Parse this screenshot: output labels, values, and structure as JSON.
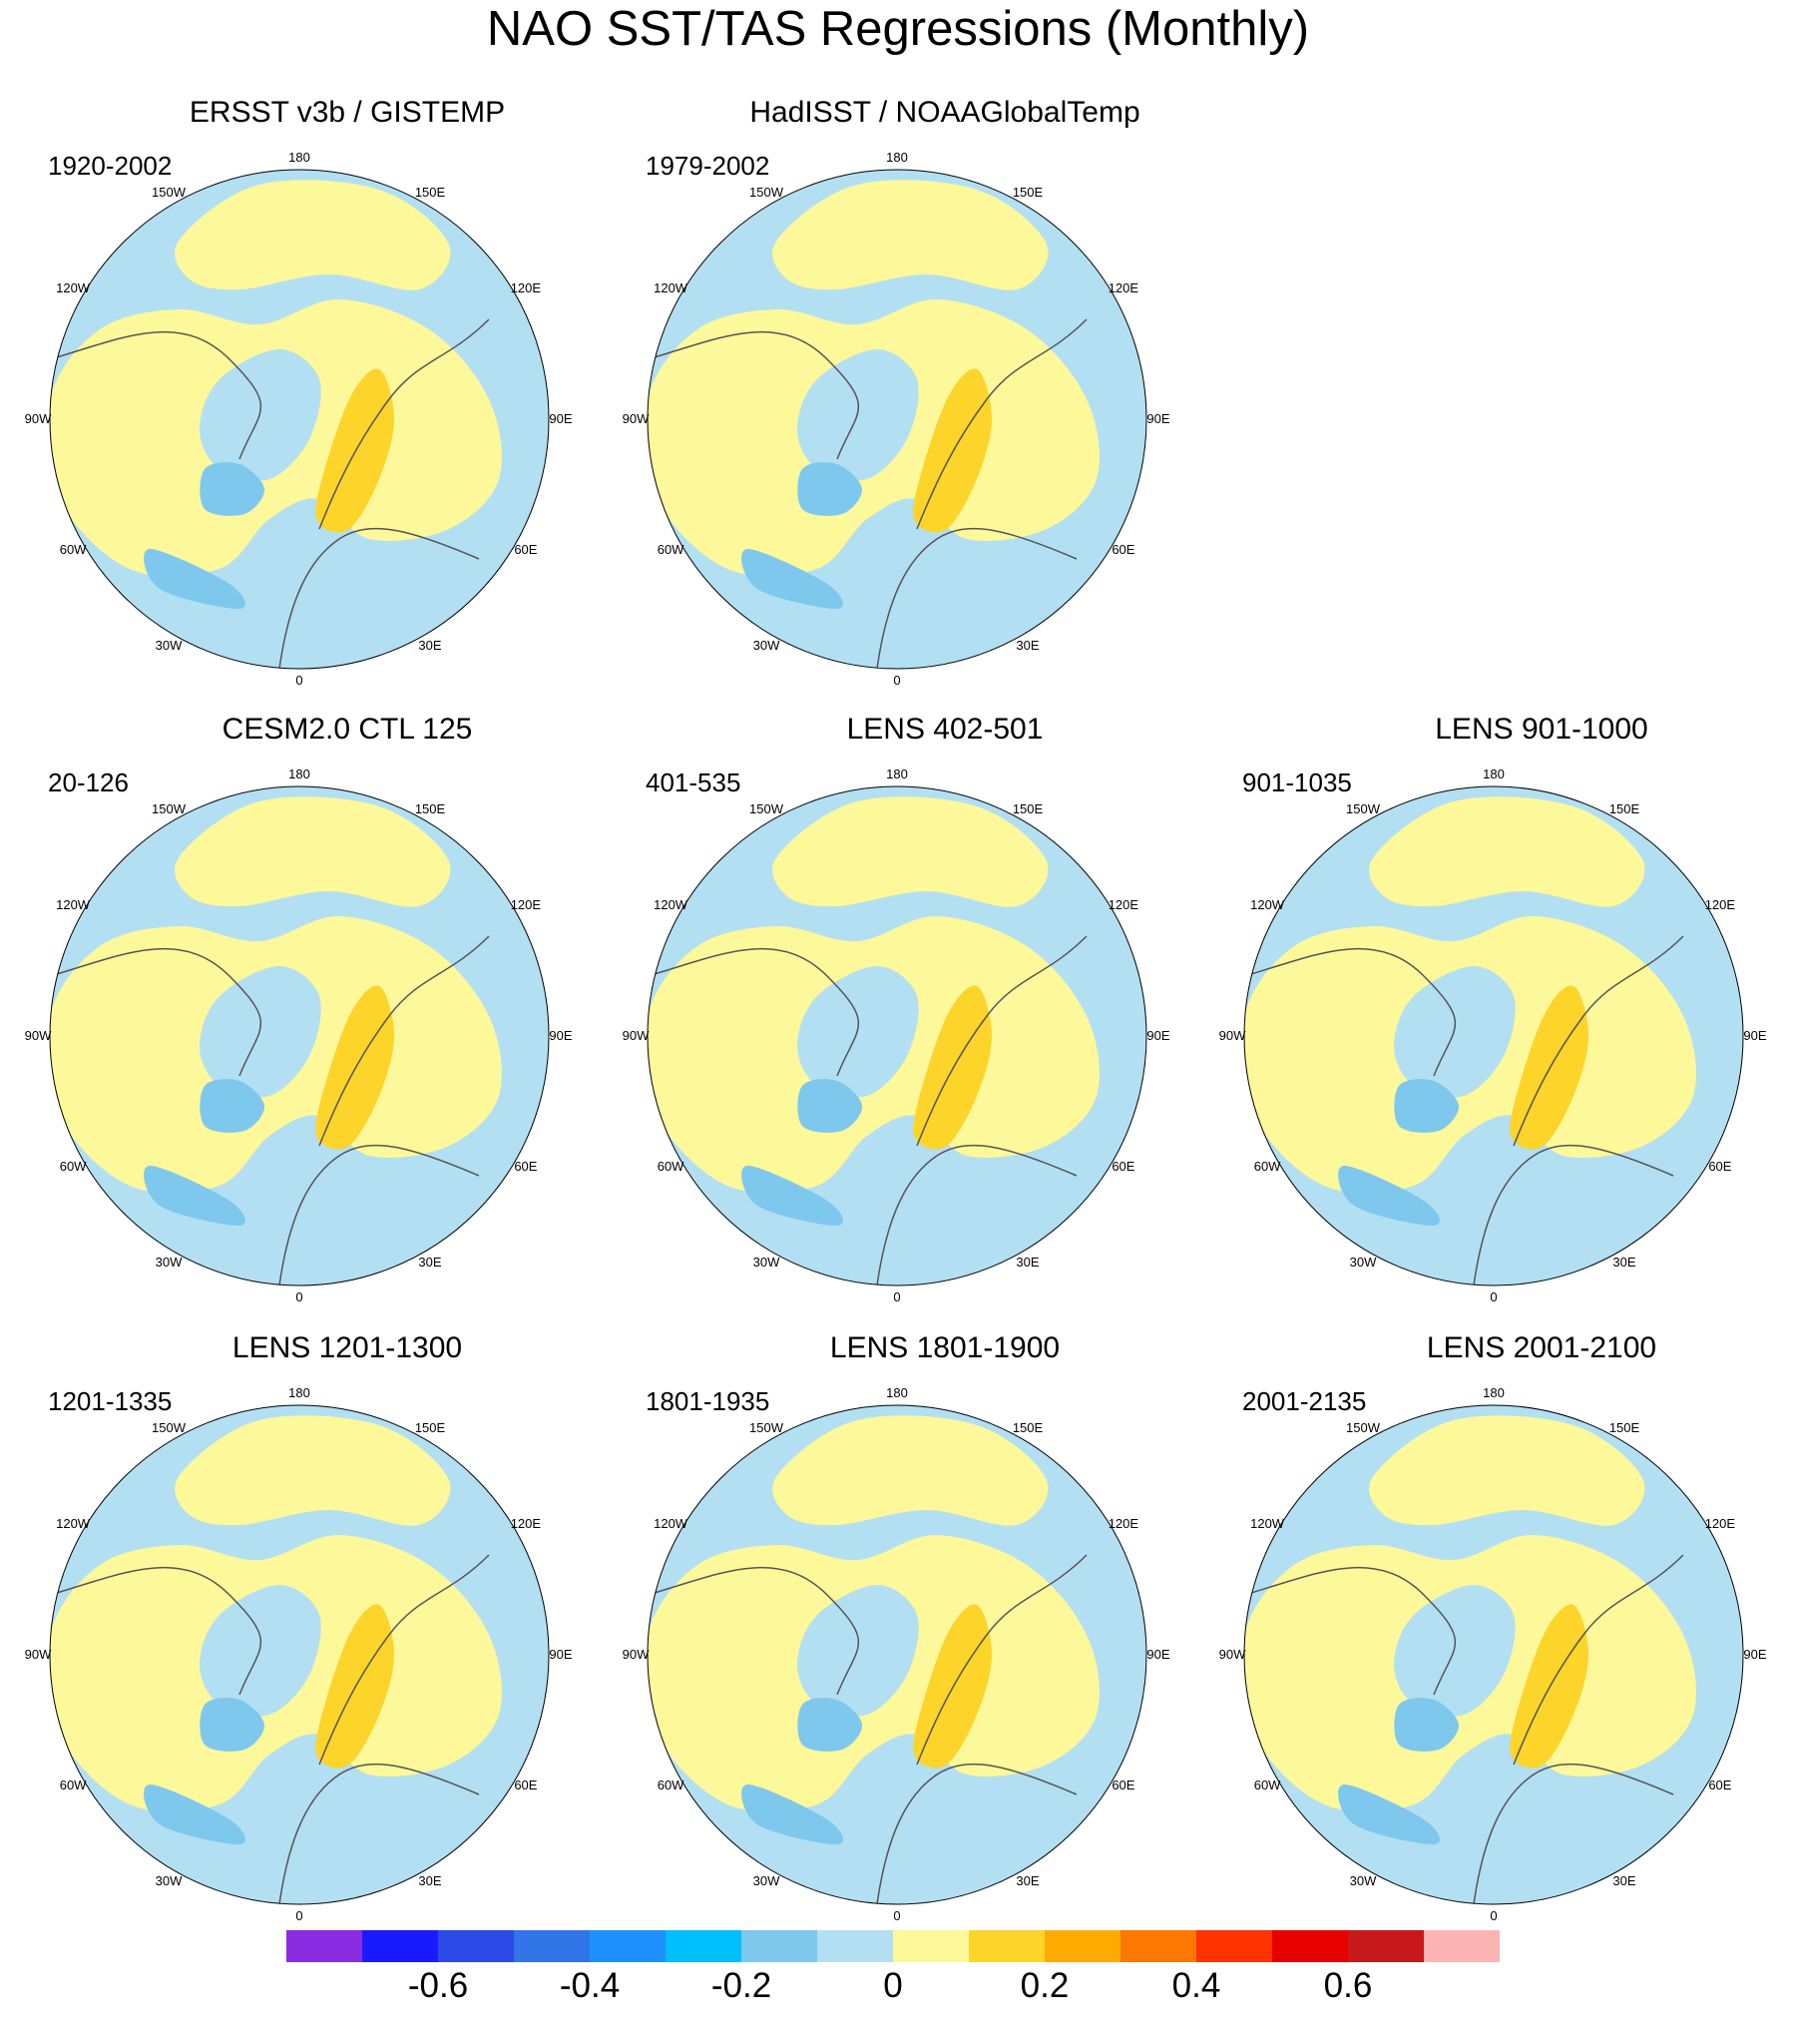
{
  "title": "NAO SST/TAS Regressions (Monthly)",
  "longitude_labels": [
    "180",
    "150E",
    "120E",
    "90E",
    "60E",
    "30E",
    "0",
    "30W",
    "60W",
    "90W",
    "120W",
    "150W"
  ],
  "panels": [
    {
      "title": "ERSST v3b / GISTEMP",
      "period": "1920-2002"
    },
    {
      "title": "HadISST / NOAAGlobalTemp",
      "period": "1979-2002"
    },
    {
      "title": "CESM2.0 CTL 125",
      "period": "20-126"
    },
    {
      "title": "LENS 402-501",
      "period": "401-535"
    },
    {
      "title": "LENS 901-1000",
      "period": "901-1035"
    },
    {
      "title": "LENS 1201-1300",
      "period": "1201-1335"
    },
    {
      "title": "LENS 1801-1900",
      "period": "1801-1935"
    },
    {
      "title": "LENS 2001-2100",
      "period": "2001-2135"
    }
  ],
  "colorbar": {
    "labels": [
      "-0.6",
      "-0.4",
      "-0.2",
      "0",
      "0.2",
      "0.4",
      "0.6"
    ],
    "colors": [
      "#8b2be2",
      "#1a1aff",
      "#2b4ae8",
      "#3275e8",
      "#1e90ff",
      "#00bfff",
      "#7ec8ee",
      "#b3dff2",
      "#fdf89a",
      "#fdd42a",
      "#fdab00",
      "#fc7800",
      "#ff3300",
      "#e60000",
      "#c8191a",
      "#fbb3b3"
    ]
  },
  "map_colors": {
    "ocean_neg_light": "#b3dff2",
    "ocean_neg_mid": "#7ec8ee",
    "pos_light": "#fdf89a",
    "pos_mid": "#fdd42a",
    "coast": "#555555"
  }
}
